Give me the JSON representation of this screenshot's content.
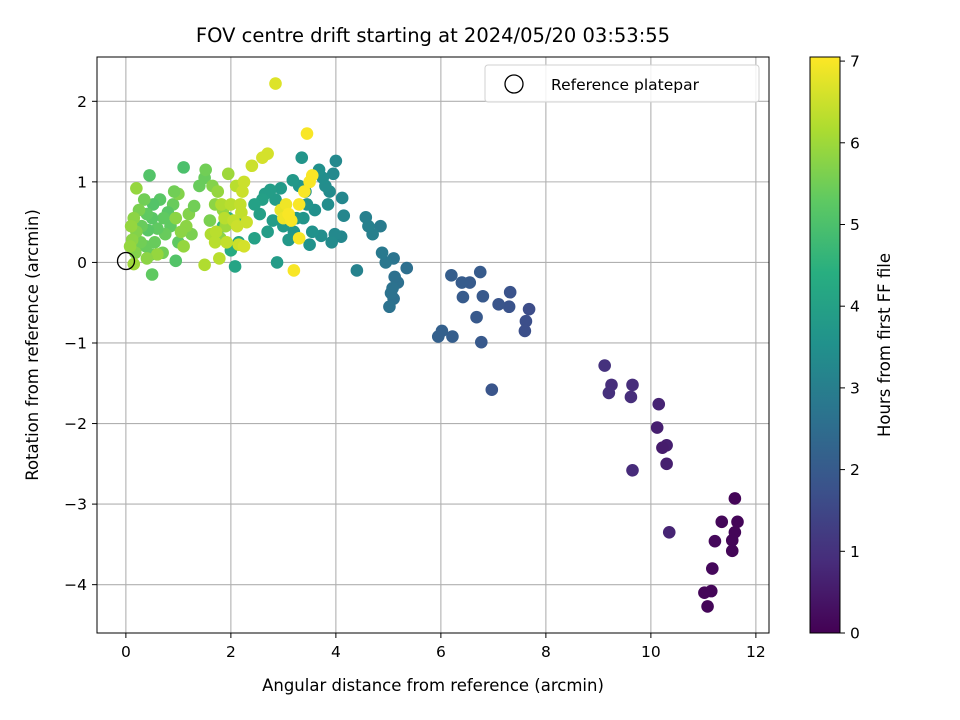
{
  "chart_data": {
    "type": "scatter",
    "title": "FOV centre drift starting at 2024/05/20 03:53:55",
    "xlabel": "Angular distance from reference (arcmin)",
    "ylabel": "Rotation from reference (arcmin)",
    "xlim": [
      -0.55,
      12.25
    ],
    "ylim": [
      -4.6,
      2.55
    ],
    "x_ticks": [
      0,
      2,
      4,
      6,
      8,
      10,
      12
    ],
    "y_ticks": [
      2,
      1,
      0,
      -1,
      -2,
      -3,
      -4
    ],
    "x_tick_labels": [
      "0",
      "2",
      "4",
      "6",
      "8",
      "10",
      "12"
    ],
    "y_tick_labels": [
      "2",
      "1",
      "0",
      "−1",
      "−2",
      "−3",
      "−4"
    ],
    "grid": true,
    "legend": {
      "placement": "top-right",
      "entries": [
        {
          "label": "Reference platepar",
          "marker": "open-circle",
          "x": 0,
          "y": 0
        }
      ]
    },
    "colorbar": {
      "label": "Hours from first FF file",
      "colormap": "viridis",
      "range": [
        0,
        7.05
      ],
      "ticks": [
        0,
        1,
        2,
        3,
        4,
        5,
        6,
        7
      ],
      "tick_labels": [
        "0",
        "1",
        "2",
        "3",
        "4",
        "5",
        "6",
        "7"
      ]
    },
    "points": [
      [
        11.6,
        -2.93,
        0.08
      ],
      [
        11.65,
        -3.22,
        0.08
      ],
      [
        11.35,
        -3.22,
        0.12
      ],
      [
        11.6,
        -3.35,
        0.1
      ],
      [
        11.55,
        -3.45,
        0.1
      ],
      [
        11.55,
        -3.58,
        0.1
      ],
      [
        11.22,
        -3.46,
        0.15
      ],
      [
        11.17,
        -3.8,
        0.15
      ],
      [
        11.15,
        -4.08,
        0.1
      ],
      [
        11.02,
        -4.1,
        0.1
      ],
      [
        11.08,
        -4.27,
        0.1
      ],
      [
        10.35,
        -3.35,
        0.7
      ],
      [
        10.3,
        -2.5,
        0.6
      ],
      [
        10.3,
        -2.27,
        0.6
      ],
      [
        10.22,
        -2.3,
        0.55
      ],
      [
        10.12,
        -2.05,
        0.6
      ],
      [
        10.15,
        -1.76,
        0.7
      ],
      [
        9.65,
        -2.58,
        0.85
      ],
      [
        9.65,
        -1.52,
        0.9
      ],
      [
        9.62,
        -1.67,
        0.9
      ],
      [
        9.25,
        -1.52,
        0.9
      ],
      [
        9.2,
        -1.62,
        0.95
      ],
      [
        9.12,
        -1.28,
        1.0
      ],
      [
        7.68,
        -0.58,
        1.65
      ],
      [
        7.62,
        -0.73,
        1.7
      ],
      [
        7.6,
        -0.85,
        1.7
      ],
      [
        7.32,
        -0.37,
        1.8
      ],
      [
        7.3,
        -0.55,
        1.8
      ],
      [
        7.1,
        -0.52,
        1.85
      ],
      [
        6.97,
        -1.58,
        1.85
      ],
      [
        6.8,
        -0.42,
        1.95
      ],
      [
        6.75,
        -0.12,
        2.0
      ],
      [
        6.77,
        -0.99,
        1.95
      ],
      [
        6.68,
        -0.68,
        1.95
      ],
      [
        6.55,
        -0.25,
        2.0
      ],
      [
        6.42,
        -0.43,
        2.0
      ],
      [
        6.4,
        -0.25,
        2.05
      ],
      [
        6.2,
        -0.16,
        2.1
      ],
      [
        6.22,
        -0.92,
        2.1
      ],
      [
        6.02,
        -0.85,
        2.15
      ],
      [
        5.95,
        -0.92,
        2.15
      ],
      [
        5.35,
        -0.07,
        2.55
      ],
      [
        5.18,
        -0.25,
        2.6
      ],
      [
        5.12,
        -0.18,
        2.6
      ],
      [
        5.1,
        -0.45,
        2.6
      ],
      [
        5.08,
        -0.32,
        2.65
      ],
      [
        5.05,
        -0.38,
        2.65
      ],
      [
        5.1,
        0.05,
        2.7
      ],
      [
        5.02,
        -0.55,
        2.65
      ],
      [
        4.95,
        0.0,
        2.8
      ],
      [
        4.88,
        0.12,
        2.85
      ],
      [
        4.85,
        0.45,
        2.9
      ],
      [
        4.7,
        0.35,
        3.0
      ],
      [
        4.62,
        0.45,
        3.05
      ],
      [
        4.57,
        0.56,
        3.05
      ],
      [
        4.4,
        -0.1,
        3.1
      ],
      [
        4.15,
        0.58,
        3.2
      ],
      [
        4.12,
        0.8,
        3.25
      ],
      [
        4.1,
        0.32,
        3.25
      ],
      [
        4.0,
        1.26,
        3.3
      ],
      [
        3.98,
        0.35,
        3.3
      ],
      [
        3.95,
        1.1,
        3.3
      ],
      [
        3.92,
        0.25,
        3.35
      ],
      [
        3.88,
        0.88,
        3.35
      ],
      [
        3.85,
        0.72,
        3.4
      ],
      [
        3.8,
        0.95,
        3.4
      ],
      [
        3.75,
        1.05,
        3.45
      ],
      [
        3.72,
        0.33,
        3.45
      ],
      [
        3.68,
        1.15,
        3.5
      ],
      [
        3.6,
        0.65,
        3.5
      ],
      [
        3.55,
        0.38,
        3.55
      ],
      [
        3.5,
        0.22,
        3.55
      ],
      [
        3.45,
        0.72,
        3.6
      ],
      [
        3.42,
        0.88,
        3.6
      ],
      [
        3.38,
        0.55,
        3.65
      ],
      [
        3.35,
        1.3,
        3.65
      ],
      [
        3.3,
        0.95,
        3.65
      ],
      [
        3.25,
        0.55,
        3.7
      ],
      [
        3.2,
        0.38,
        3.7
      ],
      [
        3.18,
        1.02,
        3.75
      ],
      [
        3.1,
        0.28,
        3.75
      ],
      [
        3.05,
        0.6,
        3.8
      ],
      [
        3.0,
        0.45,
        3.8
      ],
      [
        2.95,
        0.92,
        3.8
      ],
      [
        2.88,
        0.0,
        3.85
      ],
      [
        2.85,
        0.78,
        3.85
      ],
      [
        2.8,
        0.52,
        3.85
      ],
      [
        2.75,
        0.9,
        3.9
      ],
      [
        2.7,
        0.38,
        3.9
      ],
      [
        2.65,
        0.85,
        3.9
      ],
      [
        2.6,
        0.78,
        3.95
      ],
      [
        2.55,
        0.6,
        3.95
      ],
      [
        2.45,
        0.3,
        4.0
      ],
      [
        2.45,
        0.72,
        4.0
      ],
      [
        2.15,
        0.25,
        4.1
      ],
      [
        2.08,
        -0.05,
        4.1
      ],
      [
        2.0,
        0.15,
        4.3
      ],
      [
        2.15,
        0.5,
        4.2
      ],
      [
        1.95,
        0.55,
        4.5
      ],
      [
        1.85,
        0.45,
        4.6
      ],
      [
        1.1,
        1.18,
        5.0
      ],
      [
        1.0,
        0.25,
        5.3
      ],
      [
        0.95,
        0.02,
        5.1
      ],
      [
        0.9,
        0.72,
        5.4
      ],
      [
        0.85,
        0.45,
        5.3
      ],
      [
        0.8,
        0.62,
        5.2
      ],
      [
        0.75,
        0.35,
        5.4
      ],
      [
        0.72,
        0.55,
        5.3
      ],
      [
        0.7,
        0.12,
        5.5
      ],
      [
        0.65,
        0.78,
        5.2
      ],
      [
        0.6,
        0.42,
        5.3
      ],
      [
        0.55,
        0.25,
        5.4
      ],
      [
        0.52,
        0.72,
        5.1
      ],
      [
        0.5,
        0.55,
        5.2
      ],
      [
        0.5,
        -0.15,
        5.3
      ],
      [
        0.48,
        0.1,
        5.4
      ],
      [
        0.45,
        1.08,
        5.1
      ],
      [
        0.42,
        0.4,
        5.2
      ],
      [
        0.4,
        0.6,
        5.3
      ],
      [
        0.38,
        0.2,
        5.4
      ],
      [
        0.35,
        0.78,
        5.5
      ],
      [
        0.3,
        0.45,
        5.4
      ],
      [
        0.28,
        0.25,
        5.5
      ],
      [
        0.25,
        0.65,
        5.6
      ],
      [
        0.2,
        0.38,
        5.7
      ],
      [
        0.18,
        0.12,
        5.7
      ],
      [
        0.15,
        0.55,
        5.8
      ],
      [
        0.12,
        0.28,
        5.8
      ],
      [
        0.1,
        0.45,
        5.9
      ],
      [
        0.08,
        0.2,
        5.9
      ],
      [
        1.25,
        0.35,
        5.6
      ],
      [
        1.2,
        0.6,
        5.7
      ],
      [
        1.15,
        0.45,
        5.8
      ],
      [
        1.1,
        0.2,
        5.9
      ],
      [
        1.05,
        0.38,
        5.8
      ],
      [
        1.0,
        0.85,
        5.7
      ],
      [
        0.95,
        0.55,
        5.8
      ],
      [
        0.92,
        0.88,
        5.5
      ],
      [
        1.3,
        0.7,
        5.5
      ],
      [
        1.4,
        0.95,
        5.4
      ],
      [
        1.5,
        1.05,
        5.4
      ],
      [
        1.52,
        1.15,
        5.5
      ],
      [
        1.6,
        0.52,
        5.6
      ],
      [
        1.65,
        0.95,
        5.7
      ],
      [
        1.7,
        0.72,
        5.8
      ],
      [
        1.75,
        0.88,
        5.9
      ],
      [
        1.8,
        0.3,
        5.8
      ],
      [
        1.85,
        0.65,
        5.9
      ],
      [
        1.9,
        0.45,
        6.0
      ],
      [
        1.95,
        1.1,
        6.0
      ],
      [
        0.2,
        0.92,
        5.9
      ],
      [
        0.6,
        0.1,
        5.9
      ],
      [
        0.4,
        0.05,
        5.8
      ],
      [
        0.15,
        -0.02,
        6.0
      ],
      [
        1.5,
        -0.03,
        6.2
      ],
      [
        1.62,
        0.35,
        6.2
      ],
      [
        1.7,
        0.25,
        6.3
      ],
      [
        1.72,
        0.38,
        6.3
      ],
      [
        1.78,
        0.05,
        6.3
      ],
      [
        1.82,
        0.72,
        6.2
      ],
      [
        1.88,
        0.55,
        6.3
      ],
      [
        1.92,
        0.25,
        6.4
      ],
      [
        2.0,
        0.72,
        6.3
      ],
      [
        2.05,
        0.52,
        6.4
      ],
      [
        2.1,
        0.95,
        6.3
      ],
      [
        2.12,
        0.45,
        6.5
      ],
      [
        2.15,
        0.22,
        6.5
      ],
      [
        2.18,
        0.72,
        6.4
      ],
      [
        2.2,
        0.62,
        6.4
      ],
      [
        2.22,
        0.88,
        6.5
      ],
      [
        2.25,
        1.0,
        6.5
      ],
      [
        2.3,
        0.5,
        6.5
      ],
      [
        2.25,
        0.2,
        6.6
      ],
      [
        2.4,
        1.2,
        6.5
      ],
      [
        2.6,
        1.3,
        6.6
      ],
      [
        2.7,
        1.35,
        6.6
      ],
      [
        2.85,
        2.22,
        6.7
      ],
      [
        2.95,
        0.65,
        6.8
      ],
      [
        3.0,
        0.55,
        6.9
      ],
      [
        3.05,
        0.72,
        6.9
      ],
      [
        3.1,
        0.6,
        7.0
      ],
      [
        3.15,
        0.52,
        7.0
      ],
      [
        3.2,
        -0.1,
        7.0
      ],
      [
        3.3,
        0.72,
        7.0
      ],
      [
        3.3,
        0.3,
        7.0
      ],
      [
        3.4,
        0.88,
        7.0
      ],
      [
        3.45,
        1.6,
        7.0
      ],
      [
        3.5,
        1.0,
        7.0
      ],
      [
        3.55,
        1.08,
        7.0
      ]
    ]
  }
}
